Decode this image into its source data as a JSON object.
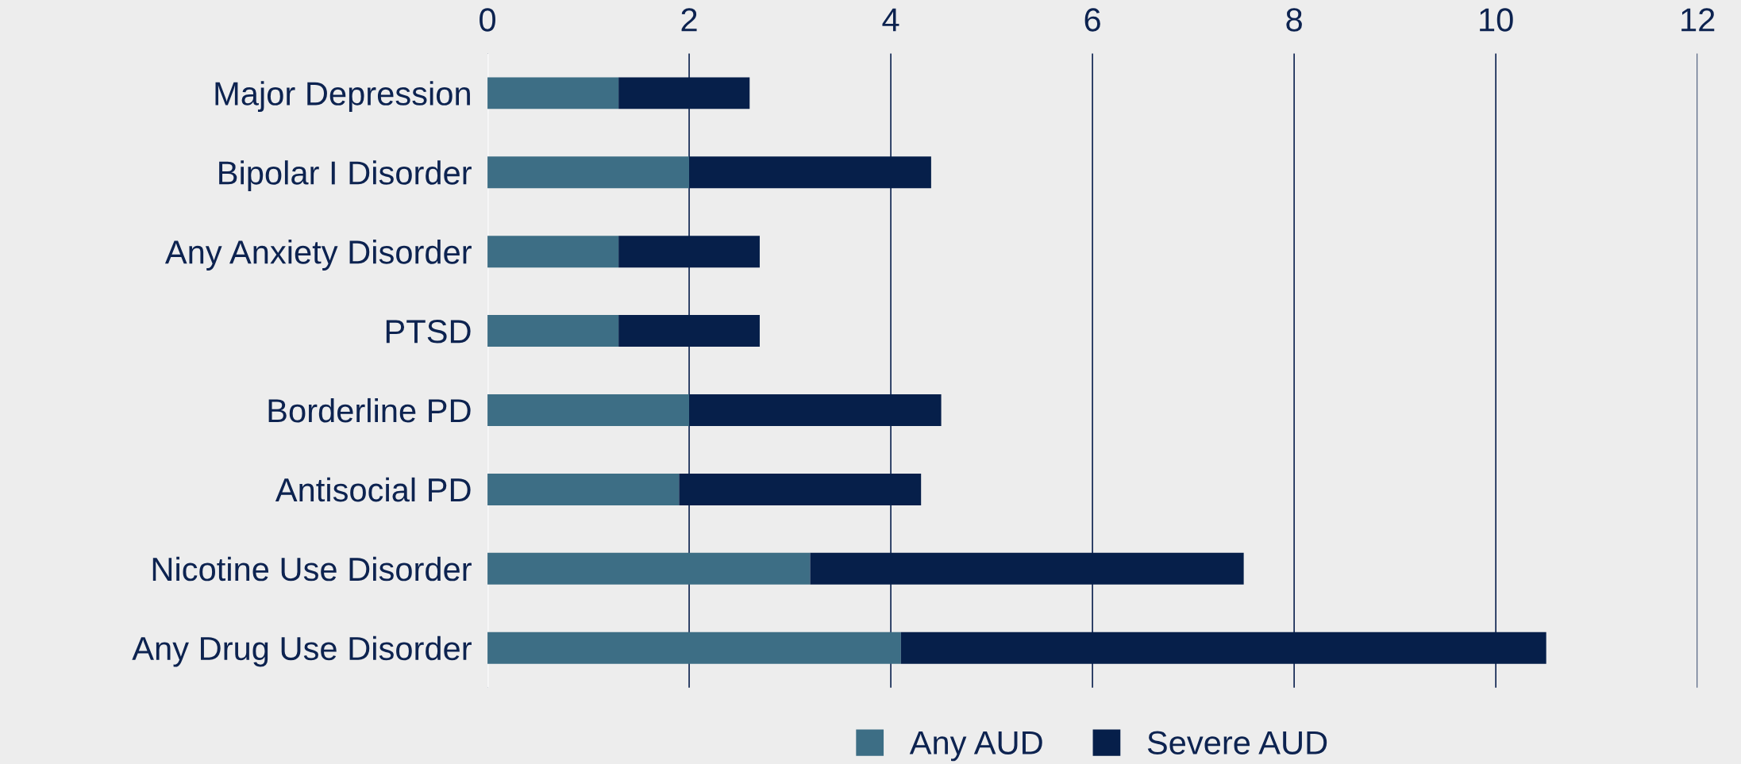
{
  "chart_data": {
    "type": "bar",
    "orientation": "horizontal",
    "stacked": true,
    "categories": [
      "Major Depression",
      "Bipolar I Disorder",
      "Any Anxiety Disorder",
      "PTSD",
      "Borderline PD",
      "Antisocial PD",
      "Nicotine Use Disorder",
      "Any Drug Use Disorder"
    ],
    "series": [
      {
        "name": "Any AUD",
        "color": "#3d6e85",
        "values": [
          1.3,
          2.0,
          1.3,
          1.3,
          2.0,
          1.9,
          3.2,
          4.1
        ]
      },
      {
        "name": "Severe AUD",
        "color": "#061f4a",
        "values": [
          1.3,
          2.4,
          1.4,
          1.4,
          2.5,
          2.4,
          4.3,
          6.4
        ]
      }
    ],
    "xlim": [
      0,
      12
    ],
    "xticks": [
      0,
      2,
      4,
      6,
      8,
      10,
      12
    ],
    "grid": "x",
    "legend": "bottom"
  }
}
